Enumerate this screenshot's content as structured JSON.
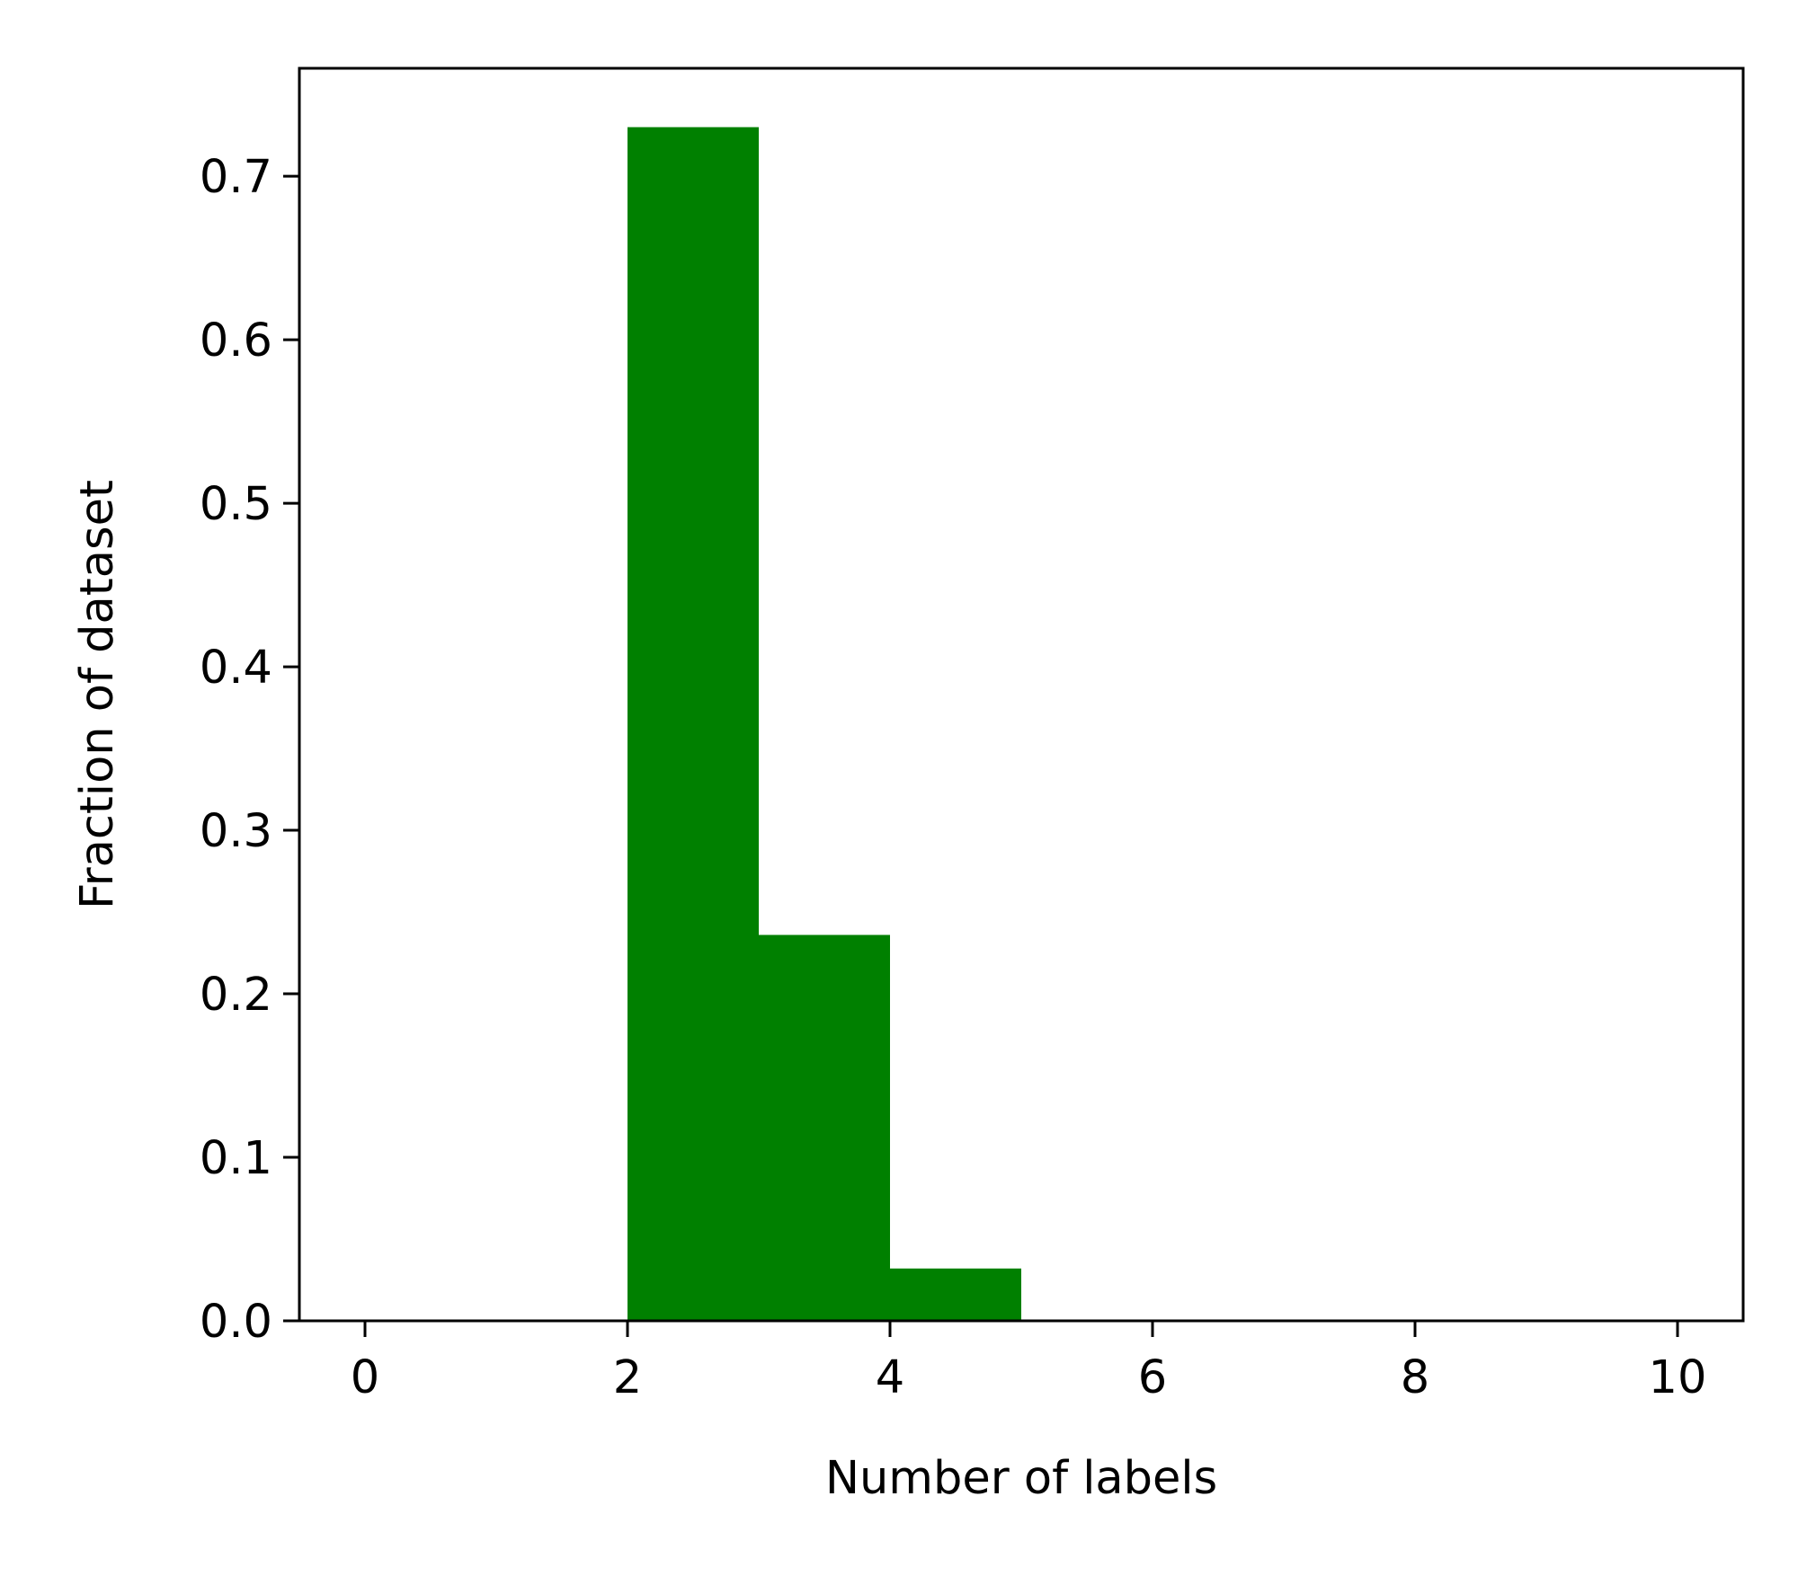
{
  "chart_data": {
    "type": "bar",
    "title": "",
    "xlabel": "Number of labels",
    "ylabel": "Fraction of dataset",
    "xlim": [
      -0.5,
      10.5
    ],
    "ylim": [
      0,
      0.766
    ],
    "x_ticks": [
      0,
      2,
      4,
      6,
      8,
      10
    ],
    "x_tick_labels": [
      "0",
      "2",
      "4",
      "6",
      "8",
      "10"
    ],
    "y_ticks": [
      0.0,
      0.1,
      0.2,
      0.3,
      0.4,
      0.5,
      0.6,
      0.7
    ],
    "y_tick_labels": [
      "0.0",
      "0.1",
      "0.2",
      "0.3",
      "0.4",
      "0.5",
      "0.6",
      "0.7"
    ],
    "bins": [
      {
        "x0": 2,
        "x1": 3,
        "value": 0.73
      },
      {
        "x0": 3,
        "x1": 4,
        "value": 0.236
      },
      {
        "x0": 4,
        "x1": 5,
        "value": 0.032
      }
    ],
    "bar_color": "#008000",
    "grid": false,
    "legend": false
  }
}
